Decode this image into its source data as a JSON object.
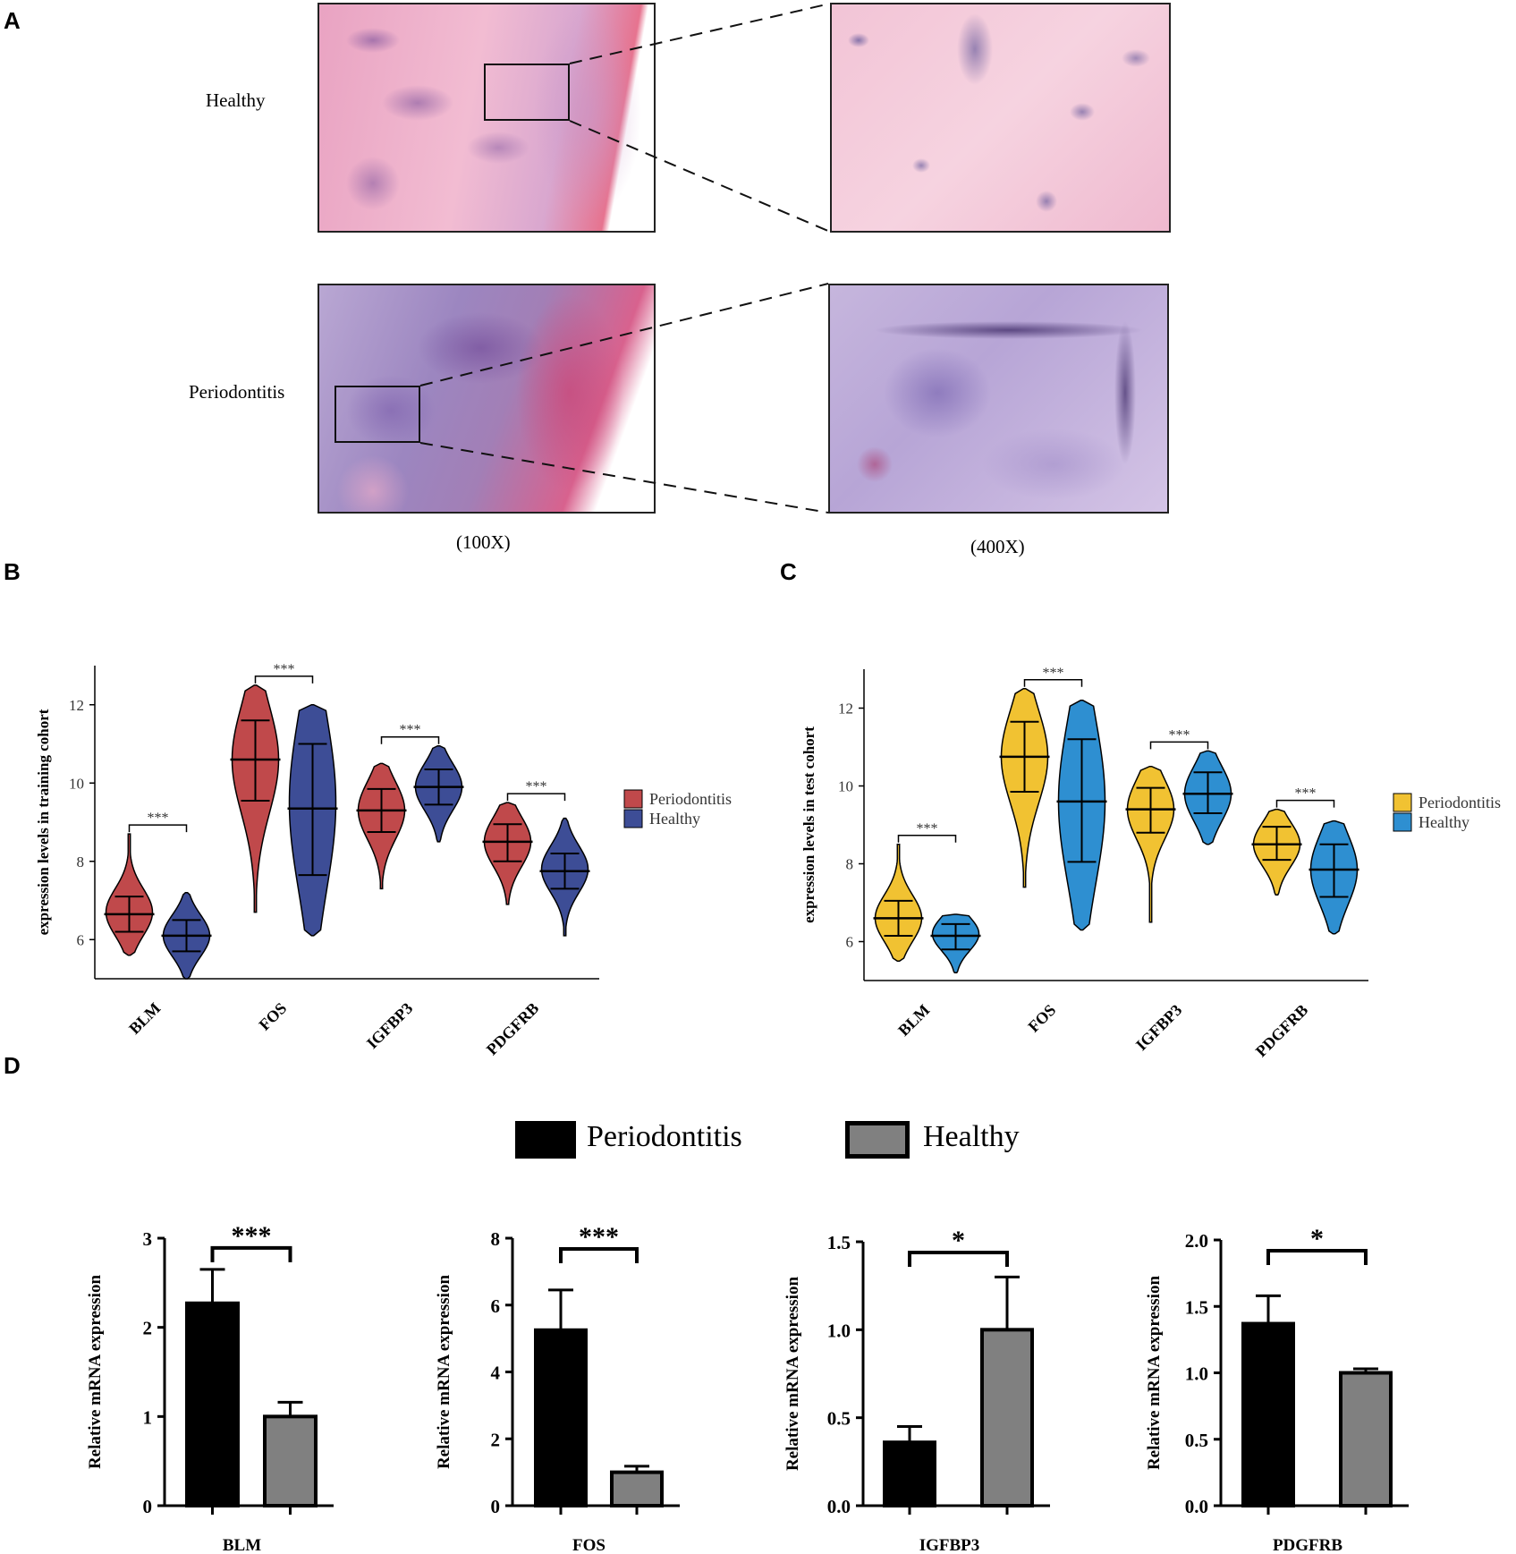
{
  "panels": {
    "A": {
      "letter": "A",
      "row_labels": [
        "Healthy",
        "Periodontitis"
      ],
      "magnifications": [
        "(100X)",
        "(400X)"
      ],
      "images": [
        {
          "name": "healthy-100x",
          "stain": "H&E, pale pink connective tissue"
        },
        {
          "name": "healthy-400x",
          "stain": "H&E, pale pink fibers with scattered nuclei"
        },
        {
          "name": "periodontitis-100x",
          "stain": "H&E, dense purple inflammatory infiltrate"
        },
        {
          "name": "periodontitis-400x",
          "stain": "H&E, purple cellular infiltrate"
        }
      ]
    },
    "B": {
      "letter": "B"
    },
    "C": {
      "letter": "C"
    },
    "D": {
      "letter": "D",
      "legend": [
        "Periodontitis",
        "Healthy"
      ]
    }
  },
  "colors": {
    "b_periodontitis": "#c0494b",
    "b_healthy": "#3d4d96",
    "c_periodontitis": "#f1c232",
    "c_healthy": "#2e8fd1",
    "d_periodontitis": "#000000",
    "d_healthy": "#808080"
  },
  "chart_data": [
    {
      "id": "B",
      "type": "violin",
      "ylabel": "expression levels in training cohort",
      "categories": [
        "BLM",
        "FOS",
        "IGFBP3",
        "PDGFRB"
      ],
      "ylim": [
        5,
        13
      ],
      "yticks": [
        6,
        8,
        10,
        12
      ],
      "legend": [
        "Periodontitis",
        "Healthy"
      ],
      "significance": [
        "***",
        "***",
        "***",
        "***"
      ],
      "series": [
        {
          "name": "Periodontitis",
          "median": [
            6.65,
            10.6,
            9.3,
            8.5
          ],
          "q1": [
            6.2,
            9.55,
            8.75,
            8.0
          ],
          "q3": [
            7.1,
            11.6,
            9.85,
            8.95
          ],
          "min": [
            5.6,
            6.7,
            7.3,
            6.9
          ],
          "max": [
            8.7,
            12.5,
            10.5,
            9.5
          ],
          "mode": [
            6.7,
            10.6,
            9.3,
            8.5
          ]
        },
        {
          "name": "Healthy",
          "median": [
            6.1,
            9.35,
            9.9,
            7.75
          ],
          "q1": [
            5.7,
            7.65,
            9.45,
            7.3
          ],
          "q3": [
            6.5,
            11.0,
            10.35,
            8.2
          ],
          "min": [
            5.0,
            6.1,
            8.5,
            6.1
          ],
          "max": [
            7.2,
            12.0,
            10.95,
            9.1
          ],
          "mode": [
            6.1,
            9.5,
            9.9,
            7.8
          ]
        }
      ]
    },
    {
      "id": "C",
      "type": "violin",
      "ylabel": "expression levels in test cohort",
      "categories": [
        "BLM",
        "FOS",
        "IGFBP3",
        "PDGFRB"
      ],
      "ylim": [
        5,
        13
      ],
      "yticks": [
        6,
        8,
        10,
        12
      ],
      "legend": [
        "Periodontitis",
        "Healthy"
      ],
      "significance": [
        "***",
        "***",
        "***",
        "***"
      ],
      "series": [
        {
          "name": "Periodontitis",
          "median": [
            6.6,
            10.75,
            9.4,
            8.5
          ],
          "q1": [
            6.15,
            9.85,
            8.8,
            8.1
          ],
          "q3": [
            7.05,
            11.65,
            9.95,
            8.95
          ],
          "min": [
            5.5,
            7.4,
            6.5,
            7.2
          ],
          "max": [
            8.5,
            12.5,
            10.5,
            9.4
          ],
          "mode": [
            6.6,
            10.75,
            9.4,
            8.5
          ]
        },
        {
          "name": "Healthy",
          "median": [
            6.15,
            9.6,
            9.8,
            7.85
          ],
          "q1": [
            5.8,
            8.05,
            9.3,
            7.15
          ],
          "q3": [
            6.45,
            11.2,
            10.35,
            8.5
          ],
          "min": [
            5.2,
            6.3,
            8.5,
            6.2
          ],
          "max": [
            6.7,
            12.2,
            10.9,
            9.1
          ],
          "mode": [
            6.2,
            9.6,
            9.8,
            7.85
          ]
        }
      ]
    },
    {
      "id": "D1",
      "type": "bar",
      "title": "BLM",
      "ylabel": "Relative  mRNA expression",
      "categories": [
        "Periodontitis",
        "Healthy"
      ],
      "values": [
        2.27,
        1.0
      ],
      "errors": [
        0.38,
        0.16
      ],
      "ylim": [
        0,
        3
      ],
      "yticks": [
        "0",
        "1",
        "2",
        "3"
      ],
      "significance": "***"
    },
    {
      "id": "D2",
      "type": "bar",
      "title": "FOS",
      "ylabel": "Relative  mRNA expression",
      "categories": [
        "Periodontitis",
        "Healthy"
      ],
      "values": [
        5.25,
        1.0
      ],
      "errors": [
        1.2,
        0.18
      ],
      "ylim": [
        0,
        8
      ],
      "yticks": [
        "0",
        "2",
        "4",
        "6",
        "8"
      ],
      "significance": "***"
    },
    {
      "id": "D3",
      "type": "bar",
      "title": "IGFBP3",
      "ylabel": "Relative  mRNA expression",
      "categories": [
        "Periodontitis",
        "Healthy"
      ],
      "values": [
        0.36,
        1.0
      ],
      "errors": [
        0.09,
        0.3
      ],
      "ylim": [
        0,
        1.5
      ],
      "yticks": [
        "0.0",
        "0.5",
        "1.0",
        "1.5"
      ],
      "significance": "*"
    },
    {
      "id": "D4",
      "type": "bar",
      "title": "PDGFRB",
      "ylabel": "Relative  mRNA expression",
      "categories": [
        "Periodontitis",
        "Healthy"
      ],
      "values": [
        1.37,
        1.0
      ],
      "errors": [
        0.21,
        0.03
      ],
      "ylim": [
        0,
        2.0
      ],
      "yticks": [
        "0.0",
        "0.5",
        "1.0",
        "1.5",
        "2.0"
      ],
      "significance": "*"
    }
  ]
}
